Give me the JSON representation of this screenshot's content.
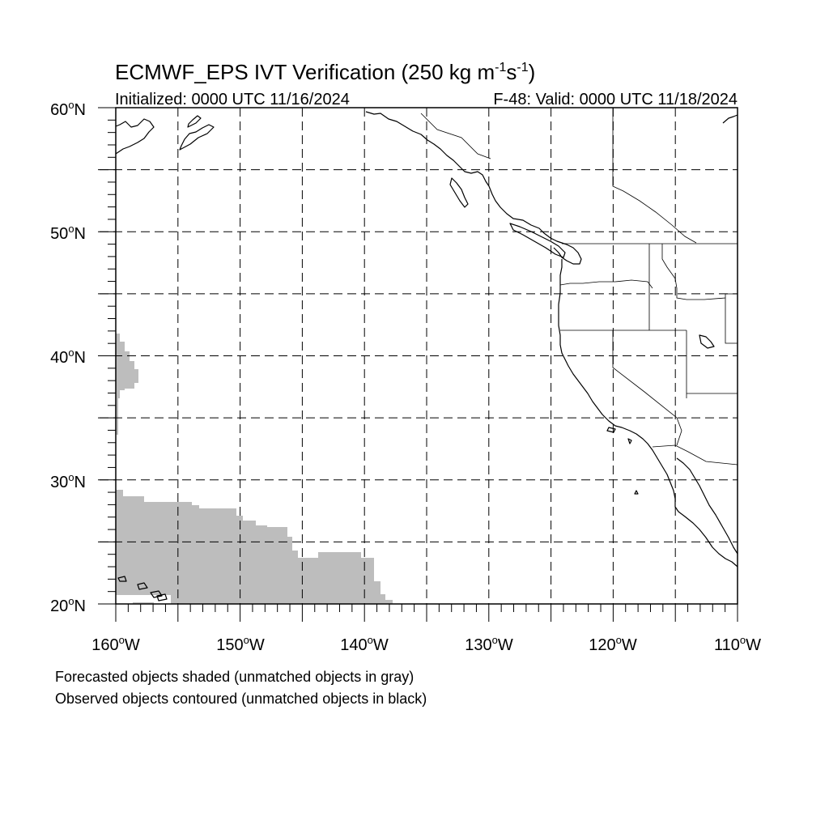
{
  "title": {
    "main": "ECMWF_EPS IVT Verification (250 kg m",
    "sup1": "-1",
    "mid": "s",
    "sup2": "-1",
    "end": ")"
  },
  "initialized": "Initialized: 0000 UTC 11/16/2024",
  "valid": "F-48: Valid: 0000 UTC 11/18/2024",
  "map": {
    "lon_range": [
      -160,
      -110
    ],
    "lat_range": [
      20,
      60
    ],
    "lon_labels": [
      {
        "value": -160,
        "num": "160",
        "deg": "o",
        "hemi": "W"
      },
      {
        "value": -150,
        "num": "150",
        "deg": "o",
        "hemi": "W"
      },
      {
        "value": -140,
        "num": "140",
        "deg": "o",
        "hemi": "W"
      },
      {
        "value": -130,
        "num": "130",
        "deg": "o",
        "hemi": "W"
      },
      {
        "value": -120,
        "num": "120",
        "deg": "o",
        "hemi": "W"
      },
      {
        "value": -110,
        "num": "110",
        "deg": "o",
        "hemi": "W"
      }
    ],
    "lat_labels": [
      {
        "value": 60,
        "num": "60",
        "deg": "o",
        "hemi": "N"
      },
      {
        "value": 50,
        "num": "50",
        "deg": "o",
        "hemi": "N"
      },
      {
        "value": 40,
        "num": "40",
        "deg": "o",
        "hemi": "N"
      },
      {
        "value": 30,
        "num": "30",
        "deg": "o",
        "hemi": "N"
      },
      {
        "value": 20,
        "num": "20",
        "deg": "o",
        "hemi": "N"
      }
    ],
    "gridline_interval_deg": 5,
    "forecast_object_color": "#bdbdbd",
    "contour_color": "#000000"
  },
  "footnotes": [
    "Forecasted objects shaded (unmatched objects in gray)",
    "Observed objects contoured (unmatched objects in black)"
  ]
}
